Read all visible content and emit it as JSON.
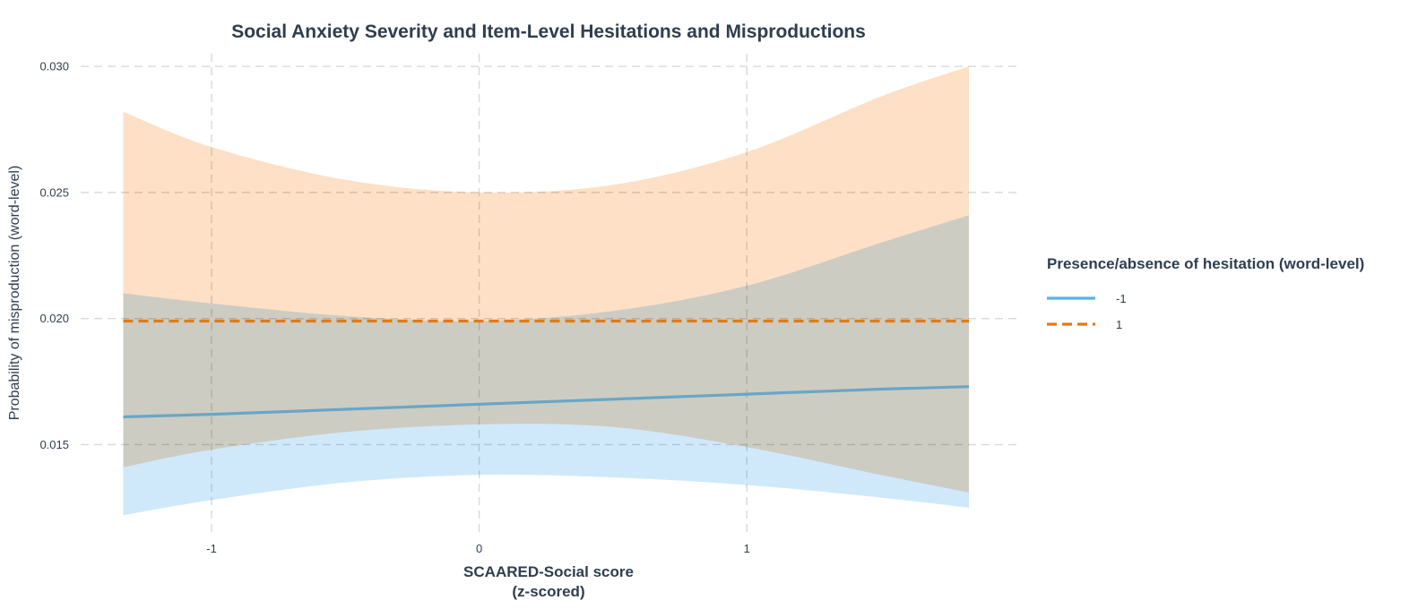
{
  "chart_data": {
    "type": "line",
    "title": "Social Anxiety Severity and Item-Level Hesitations and Misproductions",
    "xlabel_lines": [
      "SCAARED-Social score",
      "(z-scored)"
    ],
    "ylabel": "Probability of misproduction (word-level)",
    "xlim": [
      -1.33,
      1.85
    ],
    "ylim": [
      0.0115,
      0.0305
    ],
    "x_ticks": [
      -1,
      0,
      1
    ],
    "x_tick_labels": [
      "-1",
      "0",
      "1"
    ],
    "y_ticks": [
      0.015,
      0.02,
      0.025,
      0.03
    ],
    "y_tick_labels": [
      "0.015",
      "0.020",
      "0.025",
      "0.030"
    ],
    "grid": true,
    "legend": {
      "title": "Presence/absence of hesitation (word-level)",
      "placement": "right"
    },
    "x": [
      -1.33,
      -1.0,
      -0.5,
      0.0,
      0.5,
      1.0,
      1.5,
      1.83
    ],
    "series": [
      {
        "name": "-1",
        "color": "#56B4E9",
        "line_color": "#6aa6c6",
        "band_color": "#cfe9fb",
        "dash": "solid",
        "values": [
          0.0161,
          0.0162,
          0.0164,
          0.0166,
          0.0168,
          0.017,
          0.0172,
          0.0173
        ],
        "lower": [
          0.0122,
          0.0128,
          0.0135,
          0.0138,
          0.0137,
          0.0134,
          0.0129,
          0.0125
        ],
        "upper": [
          0.021,
          0.0206,
          0.0201,
          0.0199,
          0.0203,
          0.0213,
          0.023,
          0.0241
        ]
      },
      {
        "name": "1",
        "color": "#E69F00",
        "line_color": "#e07b16",
        "band_color": "#fde0c6",
        "dash": "dashed",
        "values": [
          0.0199,
          0.0199,
          0.0199,
          0.0199,
          0.0199,
          0.0199,
          0.0199,
          0.0199
        ],
        "lower": [
          0.0141,
          0.0148,
          0.0155,
          0.0158,
          0.0157,
          0.0149,
          0.0138,
          0.0131
        ],
        "upper": [
          0.0282,
          0.0268,
          0.0255,
          0.025,
          0.0253,
          0.0266,
          0.0288,
          0.03
        ]
      }
    ]
  }
}
